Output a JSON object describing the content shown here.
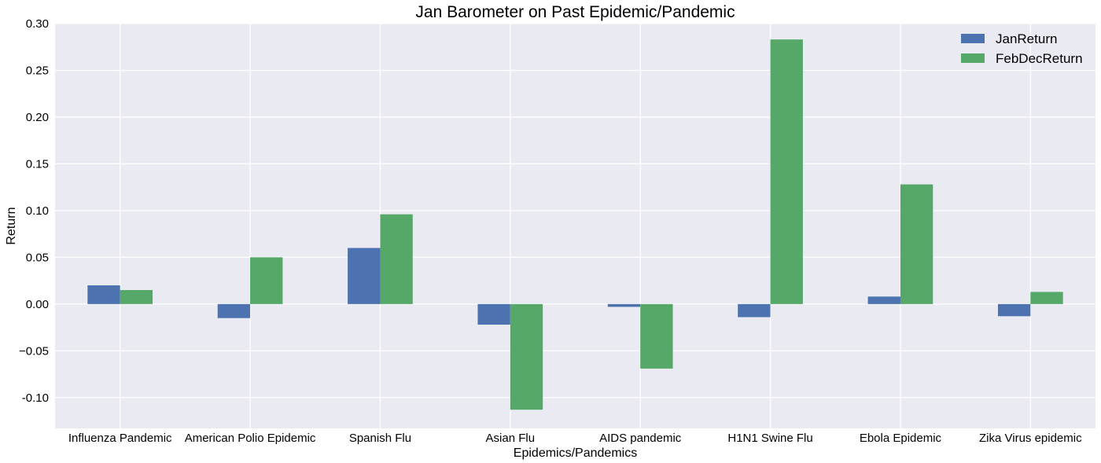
{
  "chart_data": {
    "type": "bar",
    "title": "Jan Barometer on Past Epidemic/Pandemic",
    "xlabel": "Epidemics/Pandemics",
    "ylabel": "Return",
    "categories": [
      "Influenza Pandemic",
      "American Polio Epidemic",
      "Spanish Flu",
      "Asian Flu",
      "AIDS pandemic",
      "H1N1 Swine Flu",
      "Ebola Epidemic",
      "Zika Virus epidemic"
    ],
    "series": [
      {
        "name": "JanReturn",
        "color": "#4c72b0",
        "values": [
          0.02,
          -0.015,
          0.06,
          -0.022,
          -0.003,
          -0.014,
          0.008,
          -0.013
        ]
      },
      {
        "name": "FebDecReturn",
        "color": "#55a868",
        "values": [
          0.015,
          0.05,
          0.096,
          -0.113,
          -0.069,
          0.283,
          0.128,
          0.013
        ]
      }
    ],
    "ylim": [
      -0.133,
      0.3
    ],
    "yticks": [
      -0.1,
      -0.05,
      0.0,
      0.05,
      0.1,
      0.15,
      0.2,
      0.25,
      0.3
    ],
    "ytick_labels": [
      "-0.10",
      "−0.05",
      "0.00",
      "0.05",
      "0.10",
      "0.15",
      "0.20",
      "0.25",
      "0.30"
    ],
    "grid": true,
    "legend_position": "top-right",
    "background_color": "#eaeaf2",
    "grid_color": "#ffffff"
  }
}
